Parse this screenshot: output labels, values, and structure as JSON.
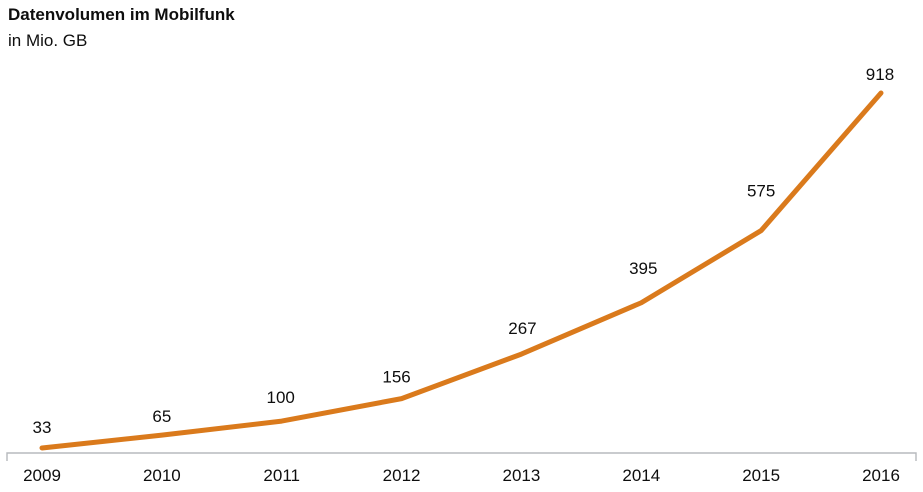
{
  "header": {
    "title": "Datenvolumen im Mobilfunk",
    "subtitle": "in Mio. GB"
  },
  "chart_data": {
    "type": "line",
    "title": "Datenvolumen im Mobilfunk",
    "subtitle_unit": "in Mio. GB",
    "categories": [
      "2009",
      "2010",
      "2011",
      "2012",
      "2013",
      "2014",
      "2015",
      "2016"
    ],
    "series": [
      {
        "name": "Datenvolumen im Mobilfunk",
        "values": [
          33,
          65,
          100,
          156,
          267,
          395,
          575,
          918
        ]
      }
    ],
    "xlabel": "",
    "ylabel": "in Mio. GB",
    "ylim": [
      0,
      918
    ],
    "grid": false,
    "legend": "none",
    "data_labels_shown": true,
    "line_color": "#da7a1c",
    "axis_color": "#b7babd",
    "text_color": "#0e0e0e"
  }
}
